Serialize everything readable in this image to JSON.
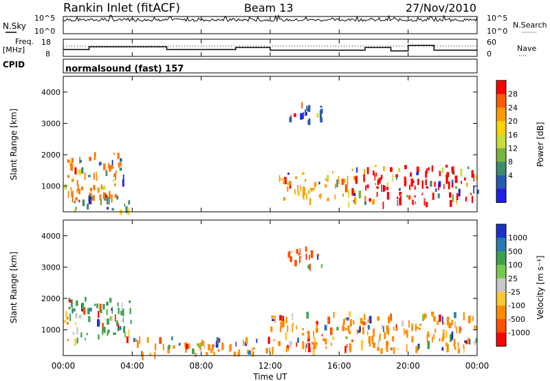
{
  "header": {
    "title": "Rankin Inlet (fitACF)",
    "beam": "Beam 13",
    "date": "27/Nov/2010"
  },
  "nsky_panel": {
    "left_label": "N.Sky",
    "left_ticks": [
      "10^5",
      "10^0"
    ],
    "right_ticks": [
      "10^5",
      "10^0"
    ],
    "right_label": "N.Search",
    "right_dots": "········"
  },
  "freq_panel": {
    "left_label_line1": "Freq.",
    "left_label_line2": "[MHz]",
    "left_ticks": [
      "18",
      "8"
    ],
    "right_ticks": [
      "60",
      "0"
    ],
    "right_label": "Nave",
    "right_dots": "····"
  },
  "cpid": {
    "label": "CPID",
    "value": "normalsound (fast) 157"
  },
  "chart_data": [
    {
      "type": "heatmap",
      "name": "Power",
      "ylabel": "Slant Range [km]",
      "yticks": [
        "4000",
        "3000",
        "2000",
        "1000"
      ],
      "ylim": [
        180,
        4500
      ],
      "colorbar_label": "Power [dB]",
      "colorbar_ticks": [
        "28",
        "24",
        "20",
        "16",
        "12",
        "8",
        "4"
      ],
      "colorbar_colors": [
        "#ff0000",
        "#ff5a00",
        "#ff9a00",
        "#ffd200",
        "#c8dc3c",
        "#78b43c",
        "#3c8c6e",
        "#285ab4",
        "#1e1ee6"
      ],
      "echo_regions": [
        {
          "t0": 0.0,
          "t1": 3.5,
          "r0": 700,
          "r1": 2100,
          "color": "#ff7800"
        },
        {
          "t0": 0.5,
          "t1": 4.0,
          "r0": 250,
          "r1": 700,
          "color": "#3c8c6e"
        },
        {
          "t0": 12.5,
          "t1": 16.5,
          "r0": 600,
          "r1": 1500,
          "color": "#ff9a00"
        },
        {
          "t0": 16.5,
          "t1": 24.0,
          "r0": 500,
          "r1": 1700,
          "color": "#ff0000"
        },
        {
          "t0": 13.0,
          "t1": 15.0,
          "r0": 3000,
          "r1": 3700,
          "color": "#285ab4"
        }
      ]
    },
    {
      "type": "heatmap",
      "name": "Velocity",
      "ylabel": "Slant Range [km]",
      "yticks": [
        "4000",
        "3000",
        "2000",
        "1000"
      ],
      "ylim": [
        180,
        4500
      ],
      "colorbar_label": "Velocity [m s⁻¹]",
      "colorbar_ticks": [
        "1000",
        "500",
        "100",
        "25",
        "-25",
        "-100",
        "-500",
        "-1000"
      ],
      "colorbar_colors": [
        "#1e32c8",
        "#2a78b4",
        "#3ca050",
        "#78c850",
        "#c8c8c8",
        "#ffc832",
        "#ff8c00",
        "#ff5000",
        "#ff0000"
      ],
      "echo_regions": [
        {
          "t0": 0.0,
          "t1": 4.0,
          "r0": 700,
          "r1": 2100,
          "color": "#3ca050"
        },
        {
          "t0": 4.0,
          "t1": 12.0,
          "r0": 250,
          "r1": 800,
          "color": "#ff8c00"
        },
        {
          "t0": 12.0,
          "t1": 24.0,
          "r0": 400,
          "r1": 1600,
          "color": "#ff8c00"
        },
        {
          "t0": 13.0,
          "t1": 15.0,
          "r0": 3000,
          "r1": 3700,
          "color": "#ff5000"
        }
      ]
    }
  ],
  "time_axis": {
    "ticks": [
      "00:00",
      "04:00",
      "08:00",
      "12:00",
      "16:00",
      "20:00",
      "00:00"
    ],
    "label": "Time UT"
  }
}
